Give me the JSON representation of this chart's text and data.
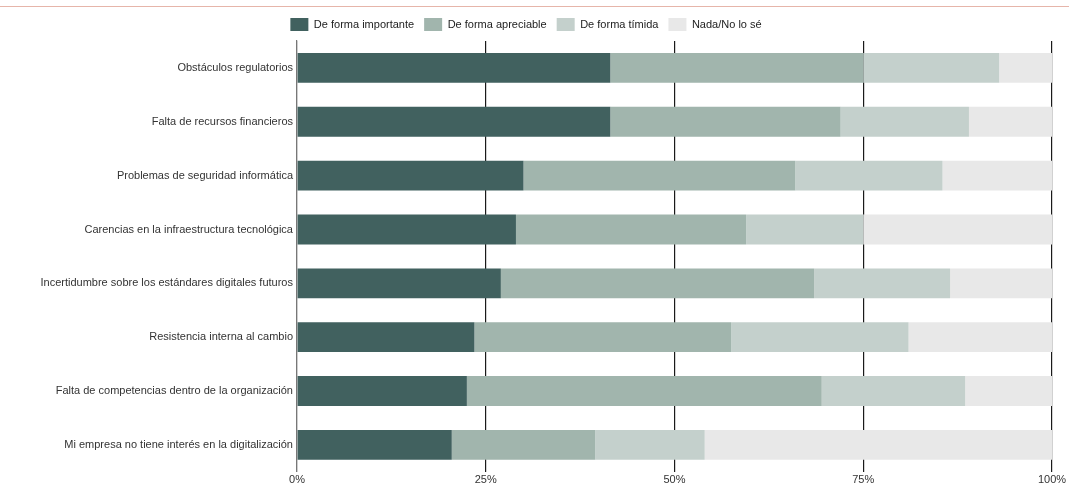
{
  "chart_data": {
    "type": "bar",
    "orientation": "horizontal",
    "stacked": true,
    "categories": [
      "Obstáculos regulatorios",
      "Falta de recursos financieros",
      "Problemas de seguridad informática",
      "Carencias en la infraestructura tecnológica",
      "Incertidumbre sobre los estándares digitales futuros",
      "Resistencia interna al cambio",
      "Falta de competencias dentro de la organización",
      "Mi empresa no tiene interés en la digitalización"
    ],
    "series": [
      {
        "name": "De forma importante",
        "color": "#41615f",
        "values": [
          41.5,
          41.5,
          30,
          29,
          27,
          23.5,
          22.5,
          20.5
        ]
      },
      {
        "name": "De forma apreciable",
        "color": "#a1b5ad",
        "values": [
          33.5,
          30.5,
          36,
          30.5,
          41.5,
          34,
          47,
          19
        ]
      },
      {
        "name": "De forma tímida",
        "color": "#c4d0cc",
        "values": [
          18,
          17,
          19.5,
          15.5,
          18,
          23.5,
          19,
          14.5
        ]
      },
      {
        "name": "Nada/No lo sé",
        "color": "#e8e8e8",
        "values": [
          7,
          11,
          14.5,
          25,
          13.5,
          19,
          11.5,
          46
        ]
      }
    ],
    "xlim": [
      0,
      100
    ],
    "xticks": [
      {
        "value": 0,
        "label": "0%"
      },
      {
        "value": 25,
        "label": "25%"
      },
      {
        "value": 50,
        "label": "50%"
      },
      {
        "value": 75,
        "label": "75%"
      },
      {
        "value": 100,
        "label": "100%"
      }
    ],
    "grid": "x",
    "legend": "top"
  }
}
